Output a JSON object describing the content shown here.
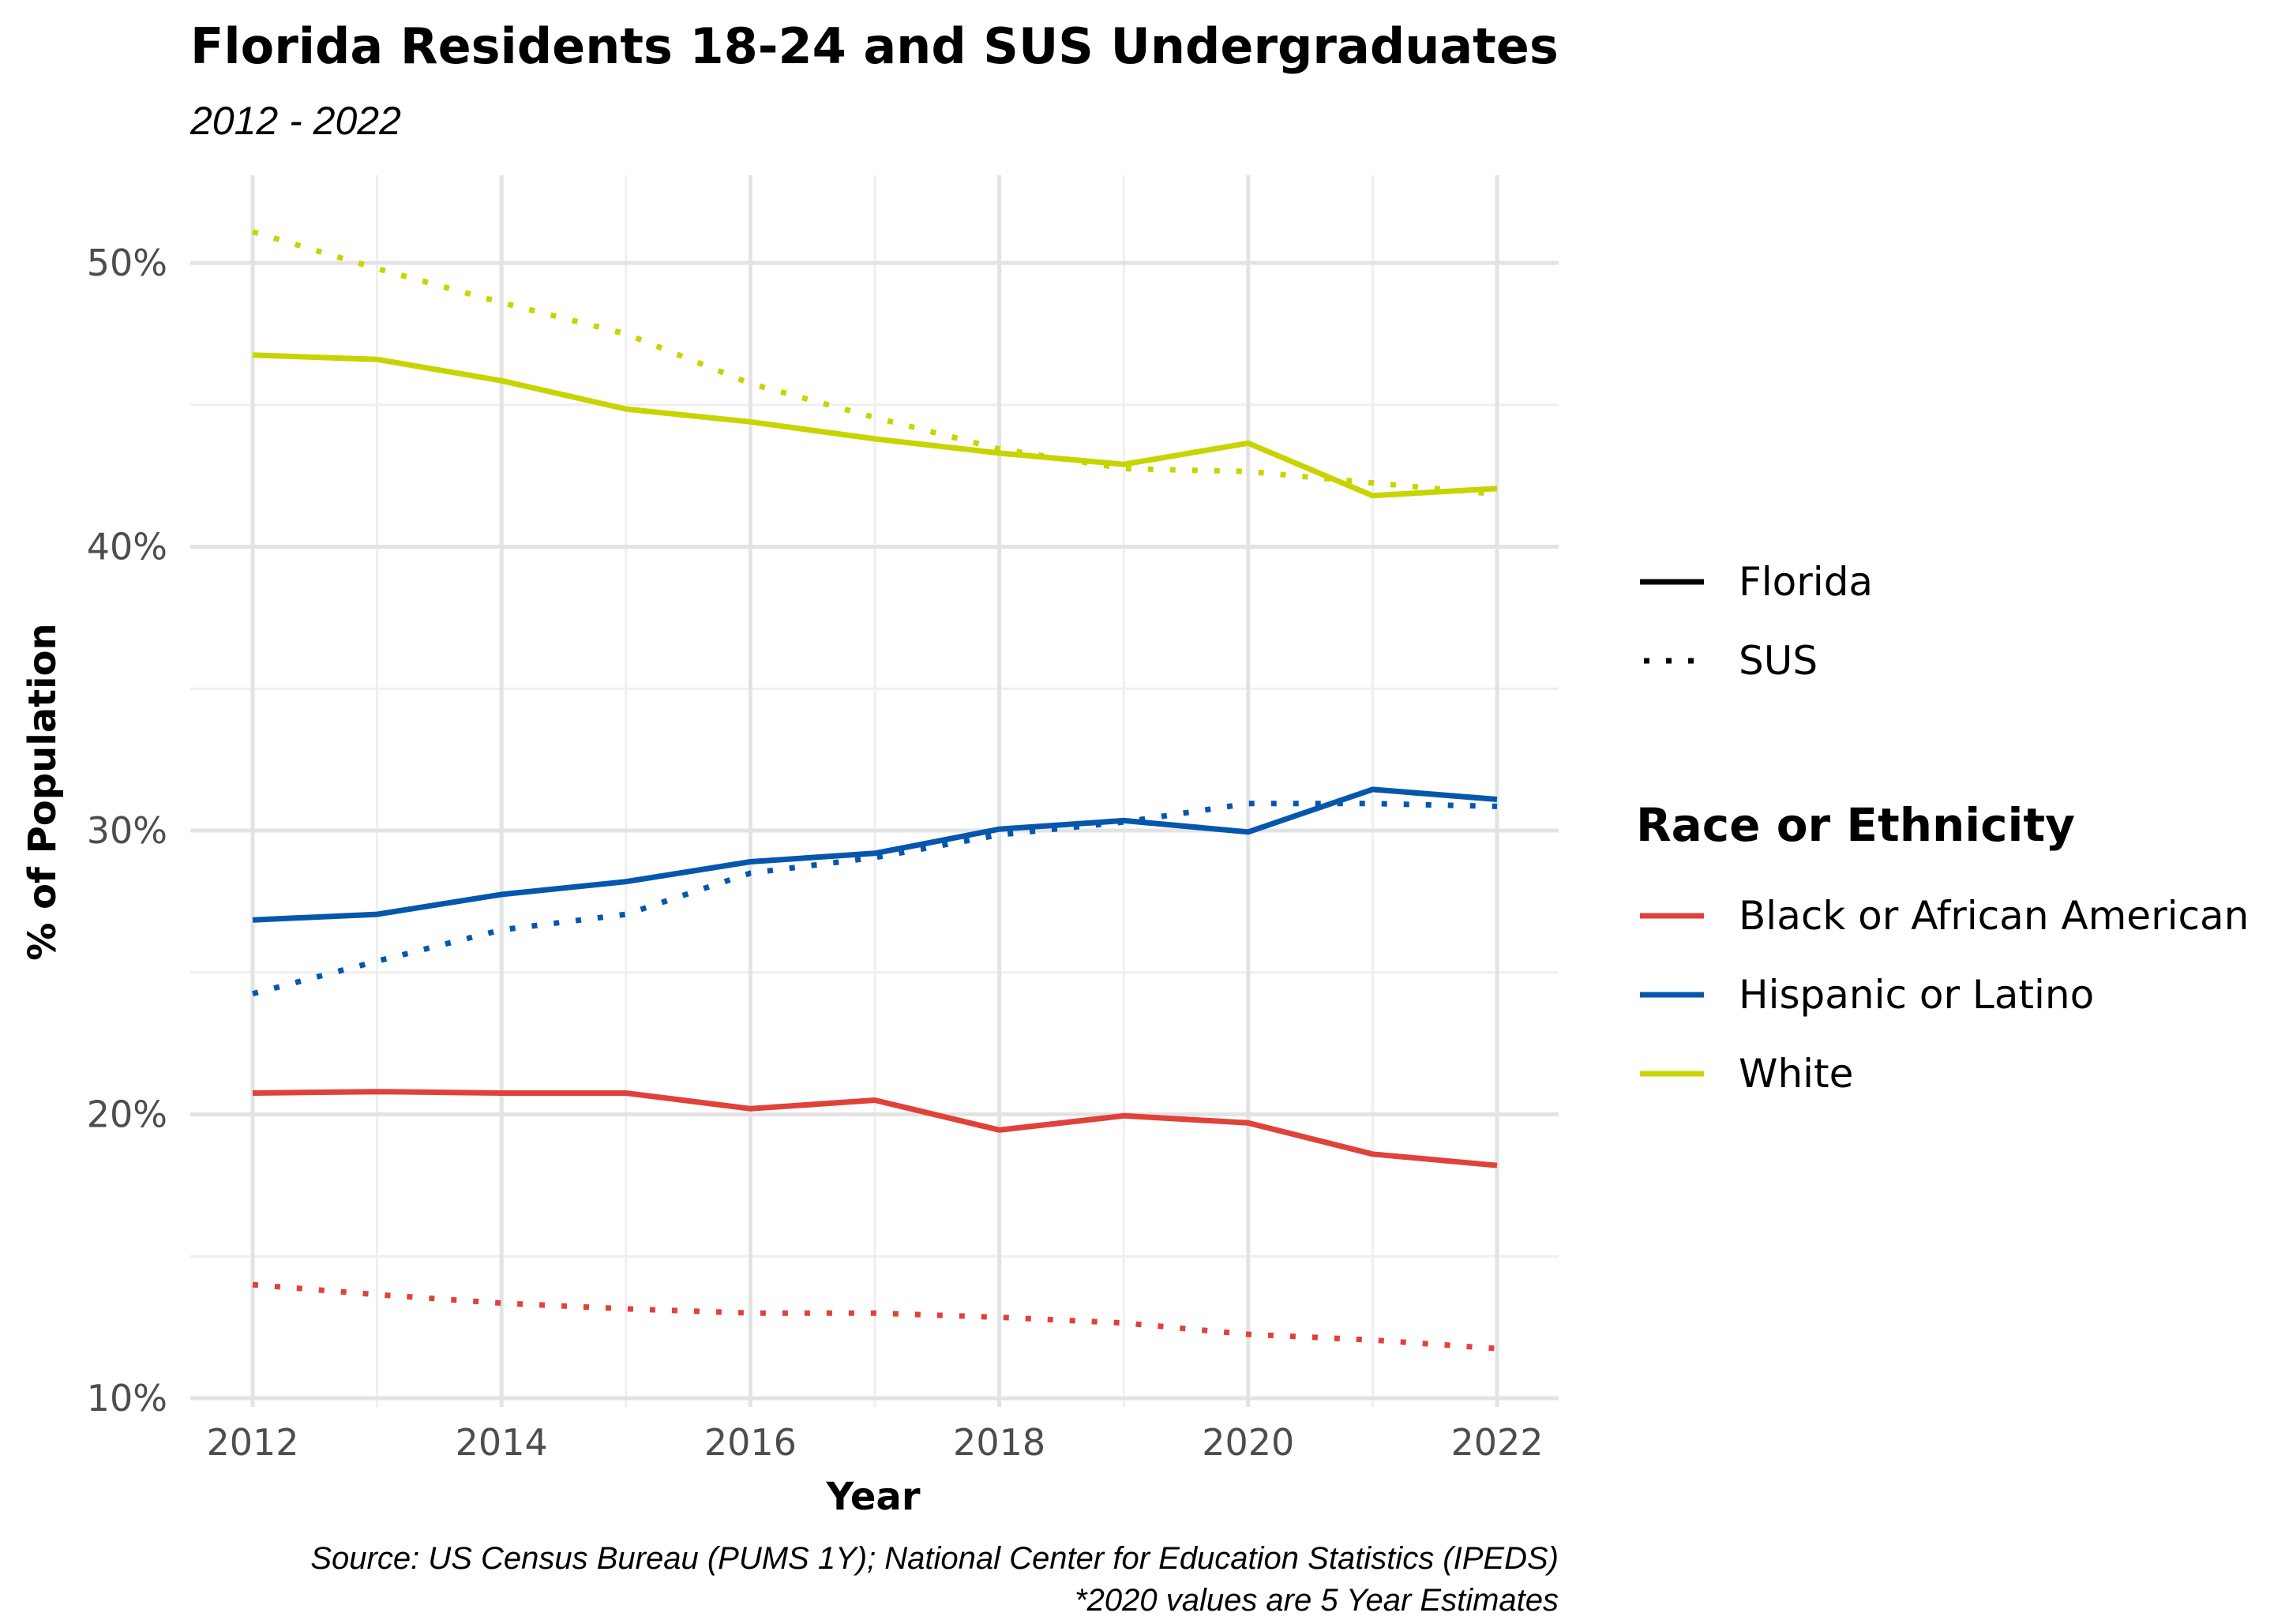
{
  "chart_data": {
    "type": "line",
    "title": "Florida Residents 18-24 and SUS Undergraduates",
    "subtitle": "2012 - 2022",
    "xlabel": "Year",
    "ylabel": "% of Population",
    "x": [
      2012,
      2013,
      2014,
      2015,
      2016,
      2017,
      2018,
      2019,
      2020,
      2021,
      2022
    ],
    "x_ticks": [
      "2012",
      "2014",
      "2016",
      "2018",
      "2020",
      "2022"
    ],
    "y_ticks": [
      "10%",
      "20%",
      "30%",
      "40%",
      "50%"
    ],
    "ylim": [
      10,
      53
    ],
    "grid": true,
    "series": [
      {
        "name": "Black or African American",
        "source": "Florida",
        "color": "#e0423a",
        "values": [
          20.75,
          20.8,
          20.75,
          20.75,
          20.2,
          20.5,
          19.45,
          19.95,
          19.7,
          18.6,
          18.2
        ]
      },
      {
        "name": "Black or African American",
        "source": "SUS",
        "color": "#e0423a",
        "values": [
          14.0,
          13.65,
          13.35,
          13.15,
          13.0,
          13.0,
          12.85,
          12.65,
          12.25,
          12.05,
          11.75
        ]
      },
      {
        "name": "Hispanic or Latino",
        "source": "Florida",
        "color": "#0457ac",
        "values": [
          26.85,
          27.05,
          27.75,
          28.2,
          28.9,
          29.2,
          30.05,
          30.35,
          29.95,
          31.45,
          31.1
        ]
      },
      {
        "name": "Hispanic or Latino",
        "source": "SUS",
        "color": "#0457ac",
        "values": [
          24.25,
          25.4,
          26.5,
          27.05,
          28.5,
          29.05,
          29.85,
          30.3,
          30.95,
          30.95,
          30.85
        ]
      },
      {
        "name": "White",
        "source": "Florida",
        "color": "#c8d400",
        "values": [
          46.75,
          46.6,
          45.85,
          44.85,
          44.4,
          43.8,
          43.3,
          42.9,
          43.65,
          41.8,
          42.05
        ]
      },
      {
        "name": "White",
        "source": "SUS",
        "color": "#c8d400",
        "values": [
          51.1,
          49.8,
          48.6,
          47.5,
          45.75,
          44.55,
          43.45,
          42.75,
          42.65,
          42.25,
          41.85
        ]
      }
    ],
    "legend": {
      "position": "right",
      "linetype_items": [
        {
          "label": "Florida",
          "style": "solid"
        },
        {
          "label": "SUS",
          "style": "dotted"
        }
      ],
      "color_title": "Race or Ethnicity",
      "color_items": [
        {
          "label": "Black or African American",
          "color": "#e0423a"
        },
        {
          "label": "Hispanic or Latino",
          "color": "#0457ac"
        },
        {
          "label": "White",
          "color": "#c8d400"
        }
      ]
    },
    "caption_line1": "Source: US Census Bureau (PUMS 1Y); National Center for Education Statistics (IPEDS)",
    "caption_line2": "*2020 values are 5 Year Estimates"
  }
}
